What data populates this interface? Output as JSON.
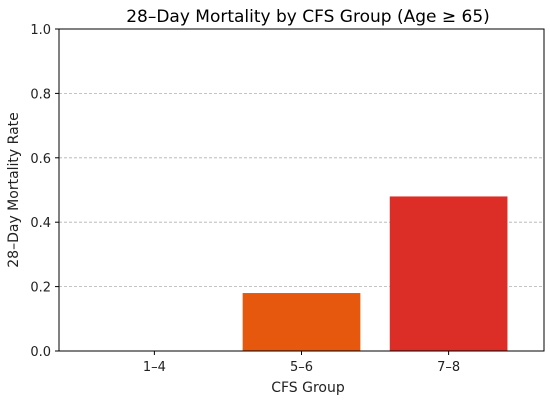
{
  "chart_data": {
    "type": "bar",
    "title": "28–Day Mortality by CFS Group (Age ≥ 65)",
    "xlabel": "CFS Group",
    "ylabel": "28–Day Mortality Rate",
    "categories": [
      "1–4",
      "5–6",
      "7–8"
    ],
    "values": [
      0.0,
      0.18,
      0.48
    ],
    "bar_colors": [
      "#1f77b4",
      "#e5580e",
      "#dc2e27"
    ],
    "ylim": [
      0,
      1.0
    ],
    "yticks": [
      0.0,
      0.2,
      0.4,
      0.6,
      0.8,
      1.0
    ],
    "ytick_labels": [
      "0.0",
      "0.2",
      "0.4",
      "0.6",
      "0.8",
      "1.0"
    ],
    "grid": "y-dashed",
    "legend": "none"
  }
}
